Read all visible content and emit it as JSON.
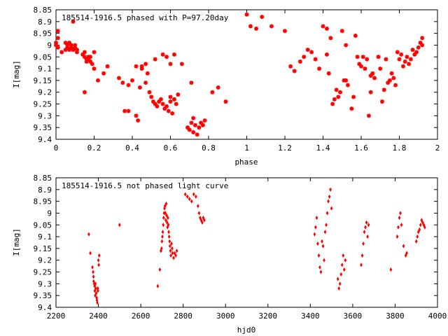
{
  "chart_data": [
    {
      "type": "scatter",
      "title": "185514-1916.5 phased with P=97.20day",
      "xlabel": "phase",
      "ylabel": "I[mag]",
      "xlim": [
        0,
        2
      ],
      "ylim": [
        9.4,
        8.85
      ],
      "y_reversed": true,
      "xticks": [
        "0",
        "0.2",
        "0.4",
        "0.6",
        "0.8",
        "1",
        "1.2",
        "1.4",
        "1.6",
        "1.8",
        "2"
      ],
      "yticks": [
        "8.85",
        "8.9",
        "8.95",
        "9",
        "9.05",
        "9.1",
        "9.15",
        "9.2",
        "9.25",
        "9.3",
        "9.35",
        "9.4"
      ],
      "grid": false,
      "legend": "none",
      "marker_color": "#ff0000",
      "series": [
        {
          "x": [
            0.0,
            0.0,
            0.01,
            0.01,
            0.01,
            0.03,
            0.05,
            0.05,
            0.06,
            0.06,
            0.07,
            0.07,
            0.08,
            0.08,
            0.09,
            0.09,
            0.1,
            0.1,
            0.11,
            0.11,
            0.14,
            0.15,
            0.15,
            0.16,
            0.16,
            0.17,
            0.17,
            0.18,
            0.18,
            0.19,
            0.2,
            0.2,
            0.15,
            0.22,
            0.25,
            0.27,
            0.33,
            0.35,
            0.36,
            0.38,
            0.4,
            0.42,
            0.42,
            0.44,
            0.45,
            0.47,
            0.47,
            0.49,
            0.5,
            0.51,
            0.52,
            0.53,
            0.54,
            0.55,
            0.56,
            0.57,
            0.58,
            0.59,
            0.6,
            0.6,
            0.61,
            0.62,
            0.63,
            0.64,
            0.45,
            0.48,
            0.52,
            0.56,
            0.58,
            0.6,
            0.62,
            0.66,
            0.69,
            0.7,
            0.71,
            0.72,
            0.73,
            0.74,
            0.75,
            0.76,
            0.77,
            0.78,
            0.72,
            0.71,
            0.82,
            0.85,
            0.89,
            0.38,
            0.43,
            1.0,
            1.02,
            1.05,
            1.08,
            1.13,
            1.2,
            1.23,
            1.25,
            1.28,
            1.3,
            1.32,
            1.34,
            1.36,
            1.38,
            1.4,
            1.42,
            1.43,
            1.45,
            1.47,
            1.48,
            1.5,
            1.52,
            1.55,
            1.58,
            1.6,
            1.62,
            1.64,
            1.66,
            1.46,
            1.49,
            1.51,
            1.53,
            1.56,
            1.59,
            1.61,
            1.63,
            1.65,
            1.67,
            1.7,
            1.72,
            1.74,
            1.75,
            1.76,
            1.77,
            1.78,
            1.79,
            1.8,
            1.81,
            1.82,
            1.83,
            1.84,
            1.85,
            1.86,
            1.87,
            1.88,
            1.89,
            1.9,
            1.91,
            1.92,
            1.92,
            1.71,
            1.73,
            1.69,
            1.65,
            1.44,
            1.42,
            1.52,
            1.57
          ],
          "y": [
            9.0,
            8.99,
            8.94,
            8.97,
            9.01,
            9.03,
            9.02,
            8.99,
            9.0,
            9.01,
            8.99,
            9.02,
            9.0,
            9.01,
            8.9,
            9.02,
            9.0,
            9.01,
            9.02,
            9.03,
            9.04,
            9.05,
            9.03,
            9.06,
            9.07,
            9.05,
            9.06,
            9.07,
            9.05,
            9.08,
            9.1,
            9.03,
            9.2,
            9.15,
            9.12,
            9.09,
            9.14,
            9.16,
            9.28,
            9.17,
            9.15,
            9.3,
            9.09,
            9.18,
            9.1,
            9.08,
            9.16,
            9.2,
            9.22,
            9.24,
            9.25,
            9.26,
            9.24,
            9.23,
            9.25,
            9.27,
            9.26,
            9.28,
            9.24,
            9.22,
            9.29,
            9.23,
            9.25,
            9.21,
            9.09,
            9.12,
            9.06,
            9.04,
            9.05,
            9.08,
            9.04,
            9.08,
            9.35,
            9.36,
            9.33,
            9.37,
            9.34,
            9.38,
            9.35,
            9.33,
            9.34,
            9.32,
            9.31,
            9.16,
            9.2,
            9.18,
            9.24,
            9.28,
            9.32,
            8.87,
            8.92,
            8.93,
            8.88,
            8.92,
            8.94,
            9.09,
            9.11,
            9.07,
            9.05,
            9.02,
            9.03,
            9.06,
            9.1,
            8.92,
            9.04,
            9.12,
            9.25,
            9.19,
            9.22,
            8.94,
            9.15,
            9.27,
            9.05,
            9.09,
            9.1,
            9.3,
            9.12,
            9.23,
            9.2,
            9.15,
            9.17,
            9.22,
            9.08,
            9.05,
            9.06,
            9.2,
            9.14,
            9.1,
            9.19,
            9.16,
            9.15,
            9.12,
            9.14,
            9.17,
            9.03,
            9.06,
            9.04,
            9.09,
            9.07,
            9.05,
            9.08,
            9.06,
            9.02,
            9.04,
            9.03,
            9.01,
            8.99,
            8.97,
            9.0,
            9.24,
            9.06,
            9.05,
            9.13,
            8.97,
            8.93,
            9.0,
            8.96
          ]
        }
      ]
    },
    {
      "type": "scatter",
      "title": "185514-1916.5 not phased light curve",
      "xlabel": "hjd0",
      "ylabel": "I[mag]",
      "xlim": [
        2200,
        4000
      ],
      "ylim": [
        9.4,
        8.85
      ],
      "y_reversed": true,
      "xticks": [
        "2200",
        "2400",
        "2600",
        "2800",
        "3000",
        "3200",
        "3400",
        "3600",
        "3800",
        "4000"
      ],
      "yticks": [
        "8.85",
        "8.9",
        "8.95",
        "9",
        "9.05",
        "9.1",
        "9.15",
        "9.2",
        "9.25",
        "9.3",
        "9.35",
        "9.4"
      ],
      "grid": false,
      "legend": "none",
      "marker_color": "#ff0000",
      "series": [
        {
          "x": [
            2355,
            2362,
            2372,
            2375,
            2377,
            2378,
            2380,
            2382,
            2383,
            2385,
            2386,
            2388,
            2390,
            2392,
            2393,
            2395,
            2397,
            2398,
            2400,
            2402,
            2404,
            2500,
            2680,
            2690,
            2695,
            2698,
            2700,
            2702,
            2704,
            2706,
            2708,
            2710,
            2712,
            2714,
            2716,
            2718,
            2720,
            2722,
            2724,
            2726,
            2728,
            2730,
            2732,
            2734,
            2736,
            2738,
            2740,
            2742,
            2745,
            2748,
            2750,
            2755,
            2760,
            2765,
            2770,
            2810,
            2820,
            2830,
            2840,
            2850,
            2860,
            2870,
            2875,
            2880,
            2885,
            2890,
            2895,
            2900,
            3420,
            3425,
            3430,
            3435,
            3440,
            3445,
            3450,
            3455,
            3460,
            3465,
            3470,
            3475,
            3480,
            3485,
            3490,
            3495,
            3500,
            3530,
            3535,
            3540,
            3545,
            3550,
            3555,
            3560,
            3565,
            3640,
            3645,
            3650,
            3655,
            3660,
            3665,
            3670,
            3675,
            3780,
            3810,
            3815,
            3820,
            3825,
            3830,
            3840,
            3850,
            3855,
            3900,
            3905,
            3910,
            3915,
            3920,
            3925,
            3930,
            3935,
            3940
          ],
          "y": [
            9.09,
            9.17,
            9.23,
            9.25,
            9.27,
            9.29,
            9.3,
            9.31,
            9.33,
            9.35,
            9.3,
            9.32,
            9.34,
            9.36,
            9.37,
            9.38,
            9.32,
            9.33,
            9.2,
            9.22,
            9.18,
            9.05,
            9.31,
            9.24,
            9.16,
            9.15,
            9.12,
            9.1,
            9.08,
            9.05,
            9.02,
            9.0,
            8.98,
            8.97,
            9.0,
            9.03,
            8.96,
            9.01,
            9.04,
            9.06,
            9.02,
            9.05,
            9.08,
            9.1,
            9.12,
            9.14,
            9.16,
            9.18,
            9.13,
            9.15,
            9.17,
            9.19,
            9.17,
            9.18,
            9.16,
            8.92,
            8.93,
            8.94,
            8.95,
            8.92,
            8.93,
            8.97,
            9.0,
            9.02,
            9.03,
            9.04,
            9.02,
            9.03,
            9.09,
            9.06,
            9.02,
            9.13,
            9.18,
            9.23,
            9.25,
            9.12,
            9.14,
            9.2,
            9.08,
            9.05,
            9.0,
            8.95,
            8.93,
            8.9,
            8.98,
            9.28,
            9.32,
            9.3,
            9.26,
            9.22,
            9.18,
            9.24,
            9.2,
            9.22,
            9.18,
            9.13,
            9.08,
            9.06,
            9.04,
            9.1,
            9.05,
            9.24,
            9.1,
            9.06,
            9.02,
            9.0,
            9.05,
            9.14,
            9.18,
            9.17,
            9.12,
            9.1,
            9.08,
            9.07,
            9.05,
            9.03,
            9.04,
            9.05,
            9.06
          ]
        }
      ]
    }
  ]
}
